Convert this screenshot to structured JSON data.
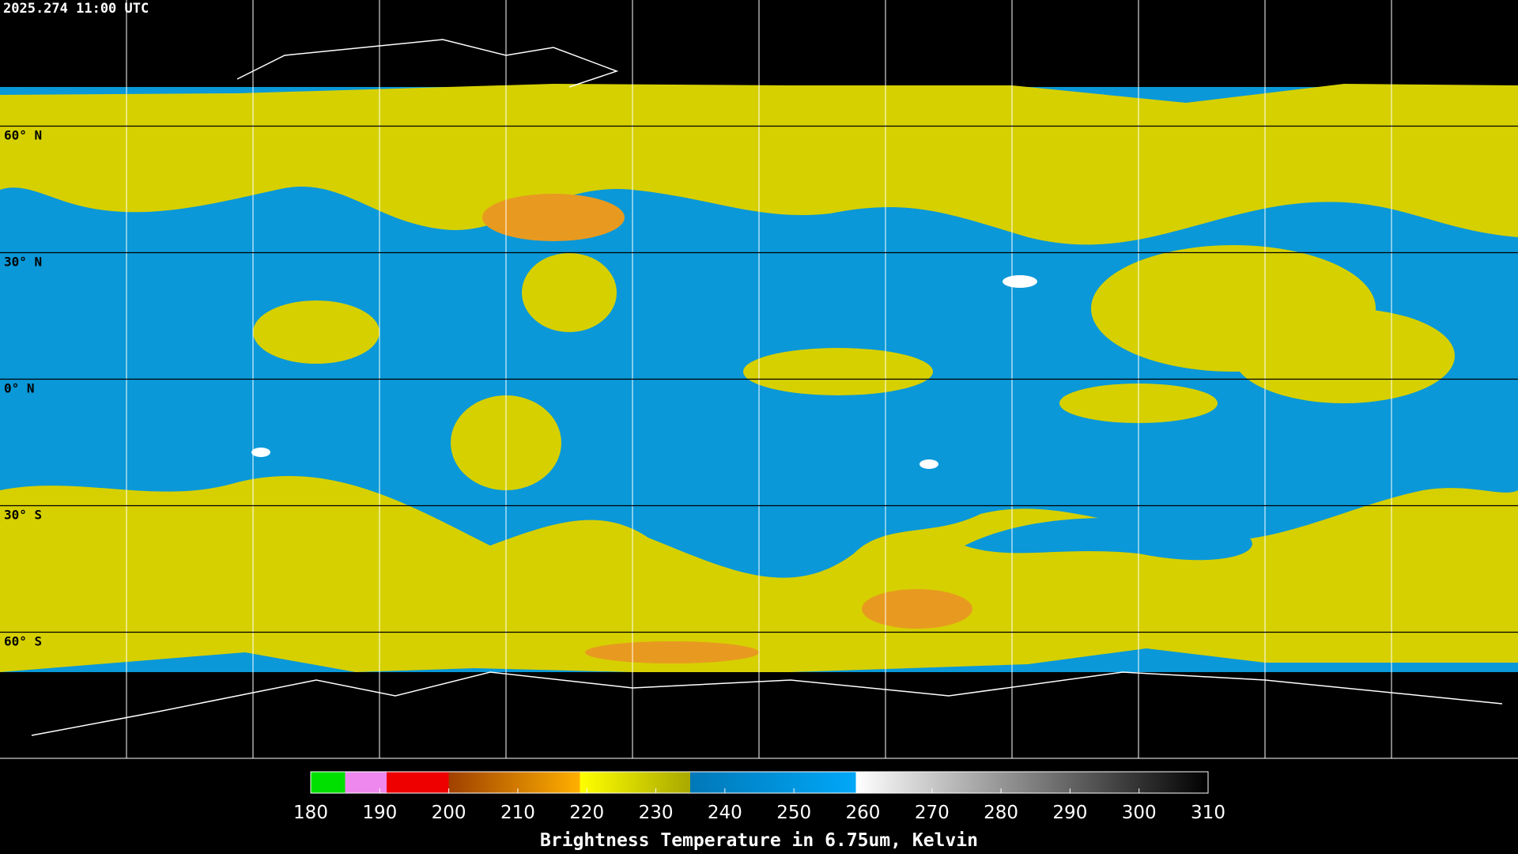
{
  "timestamp": "2025.274 11:00 UTC",
  "latitude_lines": [
    {
      "value": 60,
      "label": "60° N"
    },
    {
      "value": 30,
      "label": "30° N"
    },
    {
      "value": 0,
      "label": "0° N"
    },
    {
      "value": -30,
      "label": "30° S"
    },
    {
      "value": -60,
      "label": "60° S"
    }
  ],
  "colorbar": {
    "title": "Brightness Temperature in 6.75um, Kelvin",
    "range": [
      180,
      310
    ],
    "ticks": [
      180,
      190,
      200,
      210,
      220,
      230,
      240,
      250,
      260,
      270,
      280,
      290,
      300,
      310
    ],
    "stops": [
      {
        "value": 180,
        "color": "#00e000"
      },
      {
        "value": 185,
        "color": "#00e000"
      },
      {
        "value": 185,
        "color": "#ee88ee"
      },
      {
        "value": 191,
        "color": "#ee88ee"
      },
      {
        "value": 191,
        "color": "#ee0000"
      },
      {
        "value": 200,
        "color": "#ee0000"
      },
      {
        "value": 200,
        "color": "#a04000"
      },
      {
        "value": 219,
        "color": "#ffb000"
      },
      {
        "value": 219,
        "color": "#ffff00"
      },
      {
        "value": 235,
        "color": "#a8a800"
      },
      {
        "value": 235,
        "color": "#0078b8"
      },
      {
        "value": 259,
        "color": "#00a8f8"
      },
      {
        "value": 259,
        "color": "#ffffff"
      },
      {
        "value": 310,
        "color": "#000000"
      }
    ]
  }
}
